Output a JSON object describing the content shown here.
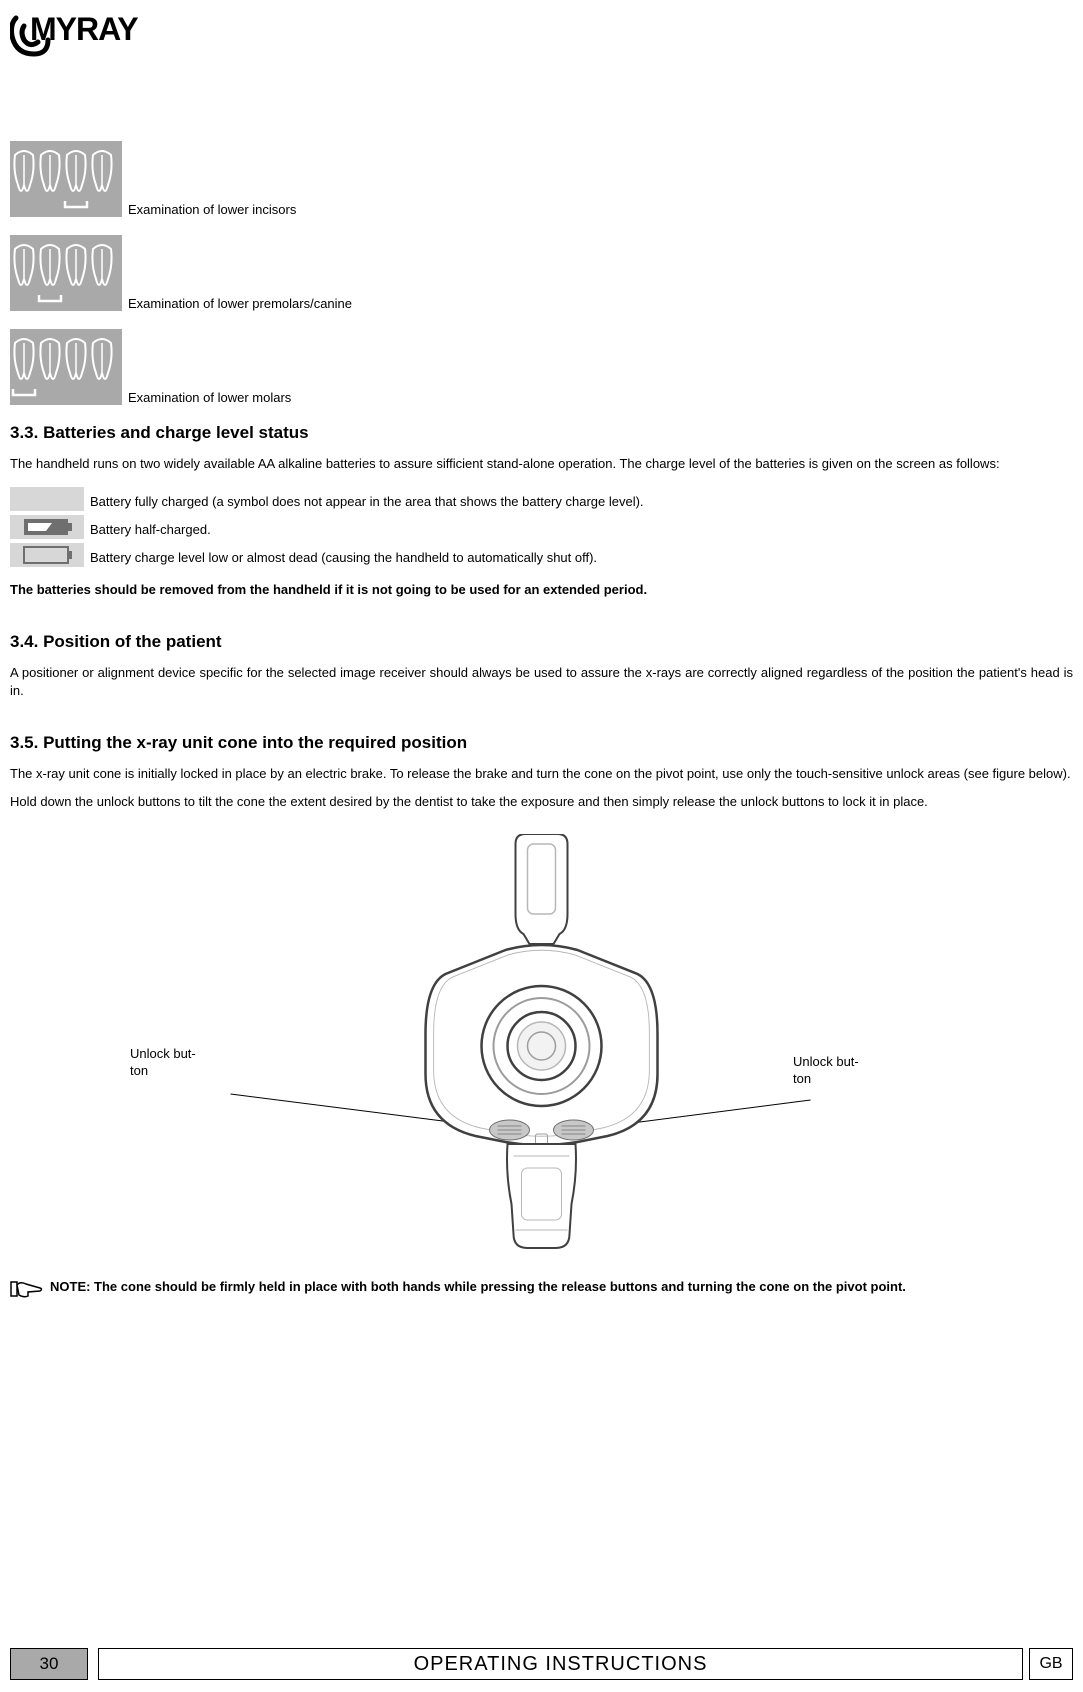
{
  "logo_text": "myray",
  "exams": [
    {
      "label": "Examination of lower incisors",
      "highlight": 2
    },
    {
      "label": "Examination of lower premolars/canine",
      "highlight": 1
    },
    {
      "label": "Examination of lower molars",
      "highlight": 0
    }
  ],
  "s33": {
    "title": "3.3.  Batteries and charge level status",
    "p1": "The handheld runs on two widely available AA alkaline batteries to assure sifficient stand-alone operation. The charge level of the batteries is given on the screen as follows:",
    "rows": [
      "Battery fully charged (a symbol does not appear in the area that shows the battery charge level).",
      "Battery half-charged.",
      "Battery charge level low or almost dead (causing the handheld to automatically shut off)."
    ],
    "p2": "The batteries should be removed from the handheld if it is not going to be used for an extended period."
  },
  "s34": {
    "title": "3.4.  Position of the patient",
    "p1": "A positioner or alignment device specific for the selected image receiver should always be used to assure the x-rays are correctly aligned regardless of the position the patient's head is in."
  },
  "s35": {
    "title": "3.5.  Putting the x-ray unit cone into the required position",
    "p1": "The x-ray unit cone is initially locked in place by an electric brake. To release the brake and turn the cone on the pivot point, use only the touch-sensitive unlock areas  (see figure below).",
    "p2": "Hold down the unlock buttons to tilt the cone the extent desired by the dentist to take the exposure and then simply release the unlock buttons to lock it in place.",
    "callout": "Unlock button",
    "note": "NOTE: The cone should be firmly held in place with both hands while pressing the release buttons and turning the cone on the pivot point."
  },
  "footer": {
    "page": "30",
    "title": "OPERATING INSTRUCTIONS",
    "lang": "GB"
  },
  "colors": {
    "grey_box": "#a9a9a9",
    "tooth_outline": "#ffffff",
    "tooth_highlight_fill": "#565656",
    "device_stroke": "#404040",
    "device_fill": "#ffffff",
    "batt_grey": "#bdbdbd",
    "batt_dark": "#6f6f6f"
  }
}
